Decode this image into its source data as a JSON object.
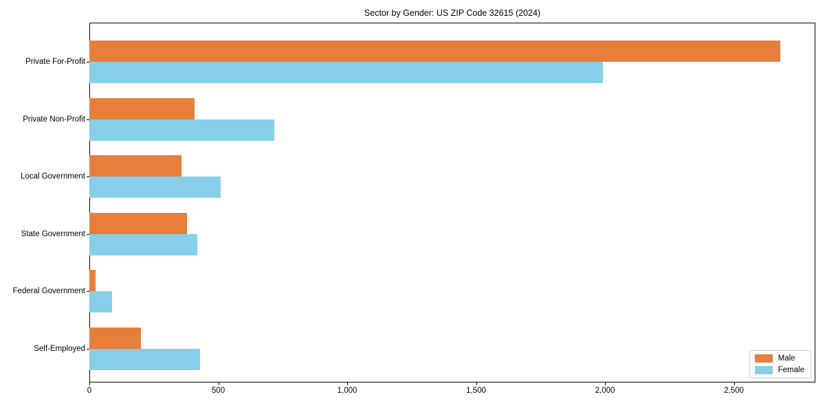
{
  "figure": {
    "background": "#ffffff"
  },
  "chart_data": {
    "type": "bar",
    "orientation": "horizontal",
    "title": "Sector by Gender: US ZIP Code 32615 (2024)",
    "categories": [
      "Private For-Profit",
      "Private Non-Profit",
      "Local Government",
      "State Government",
      "Federal Government",
      "Self-Employed"
    ],
    "series": [
      {
        "name": "Male",
        "color": "#e87e3c",
        "values": [
          2680,
          409,
          357,
          378,
          24,
          200
        ]
      },
      {
        "name": "Female",
        "color": "#87ceeb",
        "values": [
          1991,
          716,
          509,
          418,
          87,
          429
        ]
      }
    ],
    "xlabel": "",
    "ylabel": "",
    "xlim": [
      0,
      2816
    ],
    "x_ticks": [
      0,
      500,
      1000,
      1500,
      2000,
      2500
    ],
    "x_tick_labels": [
      "0",
      "500",
      "1,000",
      "1,500",
      "2,000",
      "2,500"
    ],
    "grid": false,
    "legend": {
      "position": "lower right",
      "entries": [
        "Male",
        "Female"
      ]
    }
  }
}
